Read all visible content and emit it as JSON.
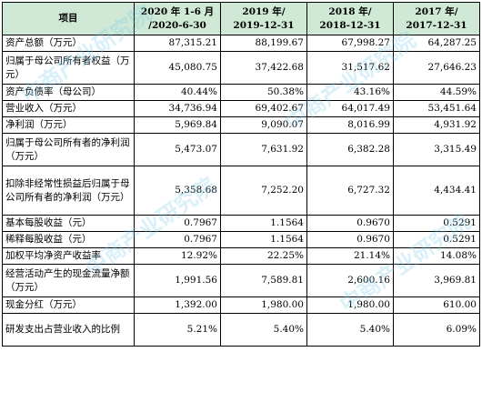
{
  "table": {
    "headers": [
      {
        "line1": "项目",
        "line2": ""
      },
      {
        "line1": "2020 年 1-6 月",
        "line2": "/2020-6-30"
      },
      {
        "line1": "2019 年/",
        "line2": "2019-12-31"
      },
      {
        "line1": "2018 年/",
        "line2": "2018-12-31"
      },
      {
        "line1": "2017 年/",
        "line2": "2017-12-31"
      }
    ],
    "rows": [
      {
        "label": "资产总额（万元）",
        "values": [
          "87,315.21",
          "88,199.67",
          "67,998.27",
          "64,287.25"
        ]
      },
      {
        "label": "归属于母公司所有者权益（万元）",
        "values": [
          "45,080.75",
          "37,422.68",
          "31,517.62",
          "27,646.23"
        ]
      },
      {
        "label": "资产负债率（母公司）",
        "values": [
          "40.44%",
          "50.38%",
          "43.16%",
          "44.59%"
        ]
      },
      {
        "label": "营业收入（万元）",
        "values": [
          "34,736.94",
          "69,402.67",
          "64,017.49",
          "53,451.64"
        ]
      },
      {
        "label": "净利润（万元）",
        "values": [
          "5,969.84",
          "9,090.07",
          "8,016.99",
          "4,931.92"
        ]
      },
      {
        "label": "归属于母公司所有者的净利润（万元）",
        "values": [
          "5,473.07",
          "7,631.92",
          "6,382.28",
          "3,315.49"
        ]
      },
      {
        "label": "扣除非经常性损益后归属于母公司所有者的净利润（万元）",
        "values": [
          "5,358.68",
          "7,252.20",
          "6,727.32",
          "4,434.41"
        ]
      },
      {
        "label": "基本每股收益（元）",
        "values": [
          "0.7967",
          "1.1564",
          "0.9670",
          "0.5291"
        ]
      },
      {
        "label": "稀释每股收益（元）",
        "values": [
          "0.7967",
          "1.1564",
          "0.9670",
          "0.5291"
        ]
      },
      {
        "label": "加权平均净资产收益率",
        "values": [
          "12.92%",
          "22.25%",
          "21.14%",
          "14.08%"
        ]
      },
      {
        "label": "经营活动产生的现金流量净额（万元）",
        "values": [
          "1,991.56",
          "7,589.81",
          "2,600.16",
          "3,969.81"
        ]
      },
      {
        "label": "现金分红（万元）",
        "values": [
          "1,392.00",
          "1,980.00",
          "1,980.00",
          "610.00"
        ]
      },
      {
        "label": "研发支出占营业收入的比例",
        "values": [
          "5.21%",
          "5.40%",
          "5.40%",
          "6.09%"
        ]
      }
    ]
  },
  "watermark": {
    "text": "中商产业研究院",
    "color": "#78c8e6"
  }
}
